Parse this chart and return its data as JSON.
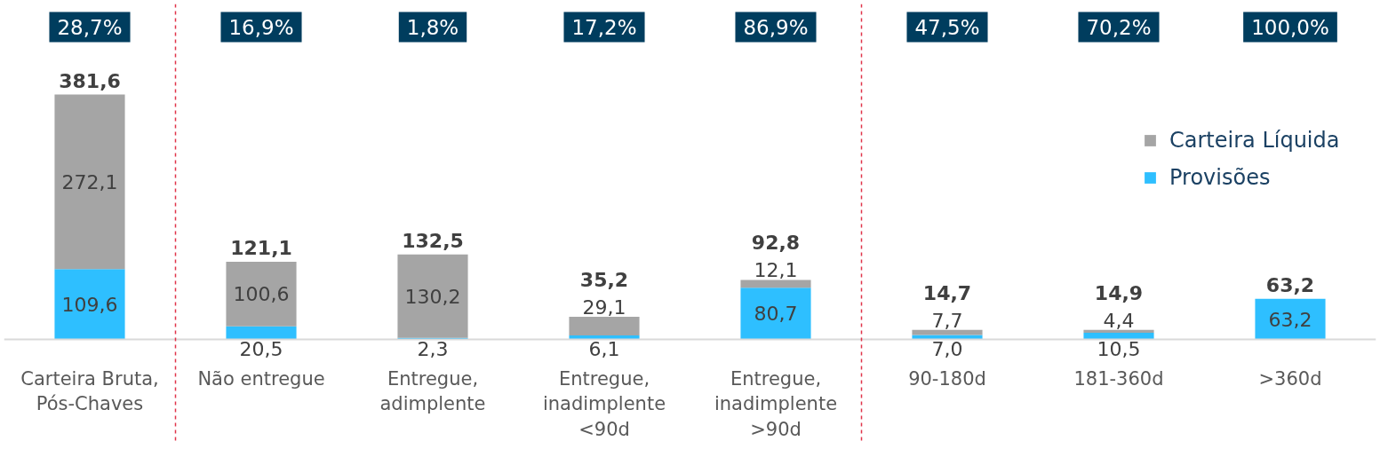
{
  "chart_data": {
    "type": "bar",
    "stacked": true,
    "categories": [
      "Carteira Bruta, Pós-Chaves",
      "Não entregue",
      "Entregue, adimplente",
      "Entregue, inadimplente <90d",
      "Entregue, inadimplente >90d",
      "90-180d",
      "181-360d",
      ">360d"
    ],
    "series": [
      {
        "name": "Provisões",
        "color": "#2ebfff",
        "values": [
          109.6,
          20.5,
          2.3,
          6.1,
          80.7,
          7.0,
          10.5,
          63.2
        ],
        "value_labels": [
          "109,6",
          "20,5",
          "2,3",
          "6,1",
          "80,7",
          "7,0",
          "10,5",
          "63,2"
        ]
      },
      {
        "name": "Carteira Líquida",
        "color": "#a5a5a5",
        "values": [
          272.1,
          100.6,
          130.2,
          29.1,
          12.1,
          7.7,
          4.4,
          null
        ],
        "value_labels": [
          "272,1",
          "100,6",
          "130,2",
          "29,1",
          "12,1",
          "7,7",
          "4,4",
          null
        ]
      }
    ],
    "totals": [
      "381,6",
      "121,1",
      "132,5",
      "35,2",
      "92,8",
      "14,7",
      "14,9",
      "63,2"
    ],
    "annotations": [
      "28,7%",
      "16,9%",
      "1,8%",
      "17,2%",
      "86,9%",
      "47,5%",
      "70,2%",
      "100,0%"
    ],
    "legend": "top right"
  }
}
